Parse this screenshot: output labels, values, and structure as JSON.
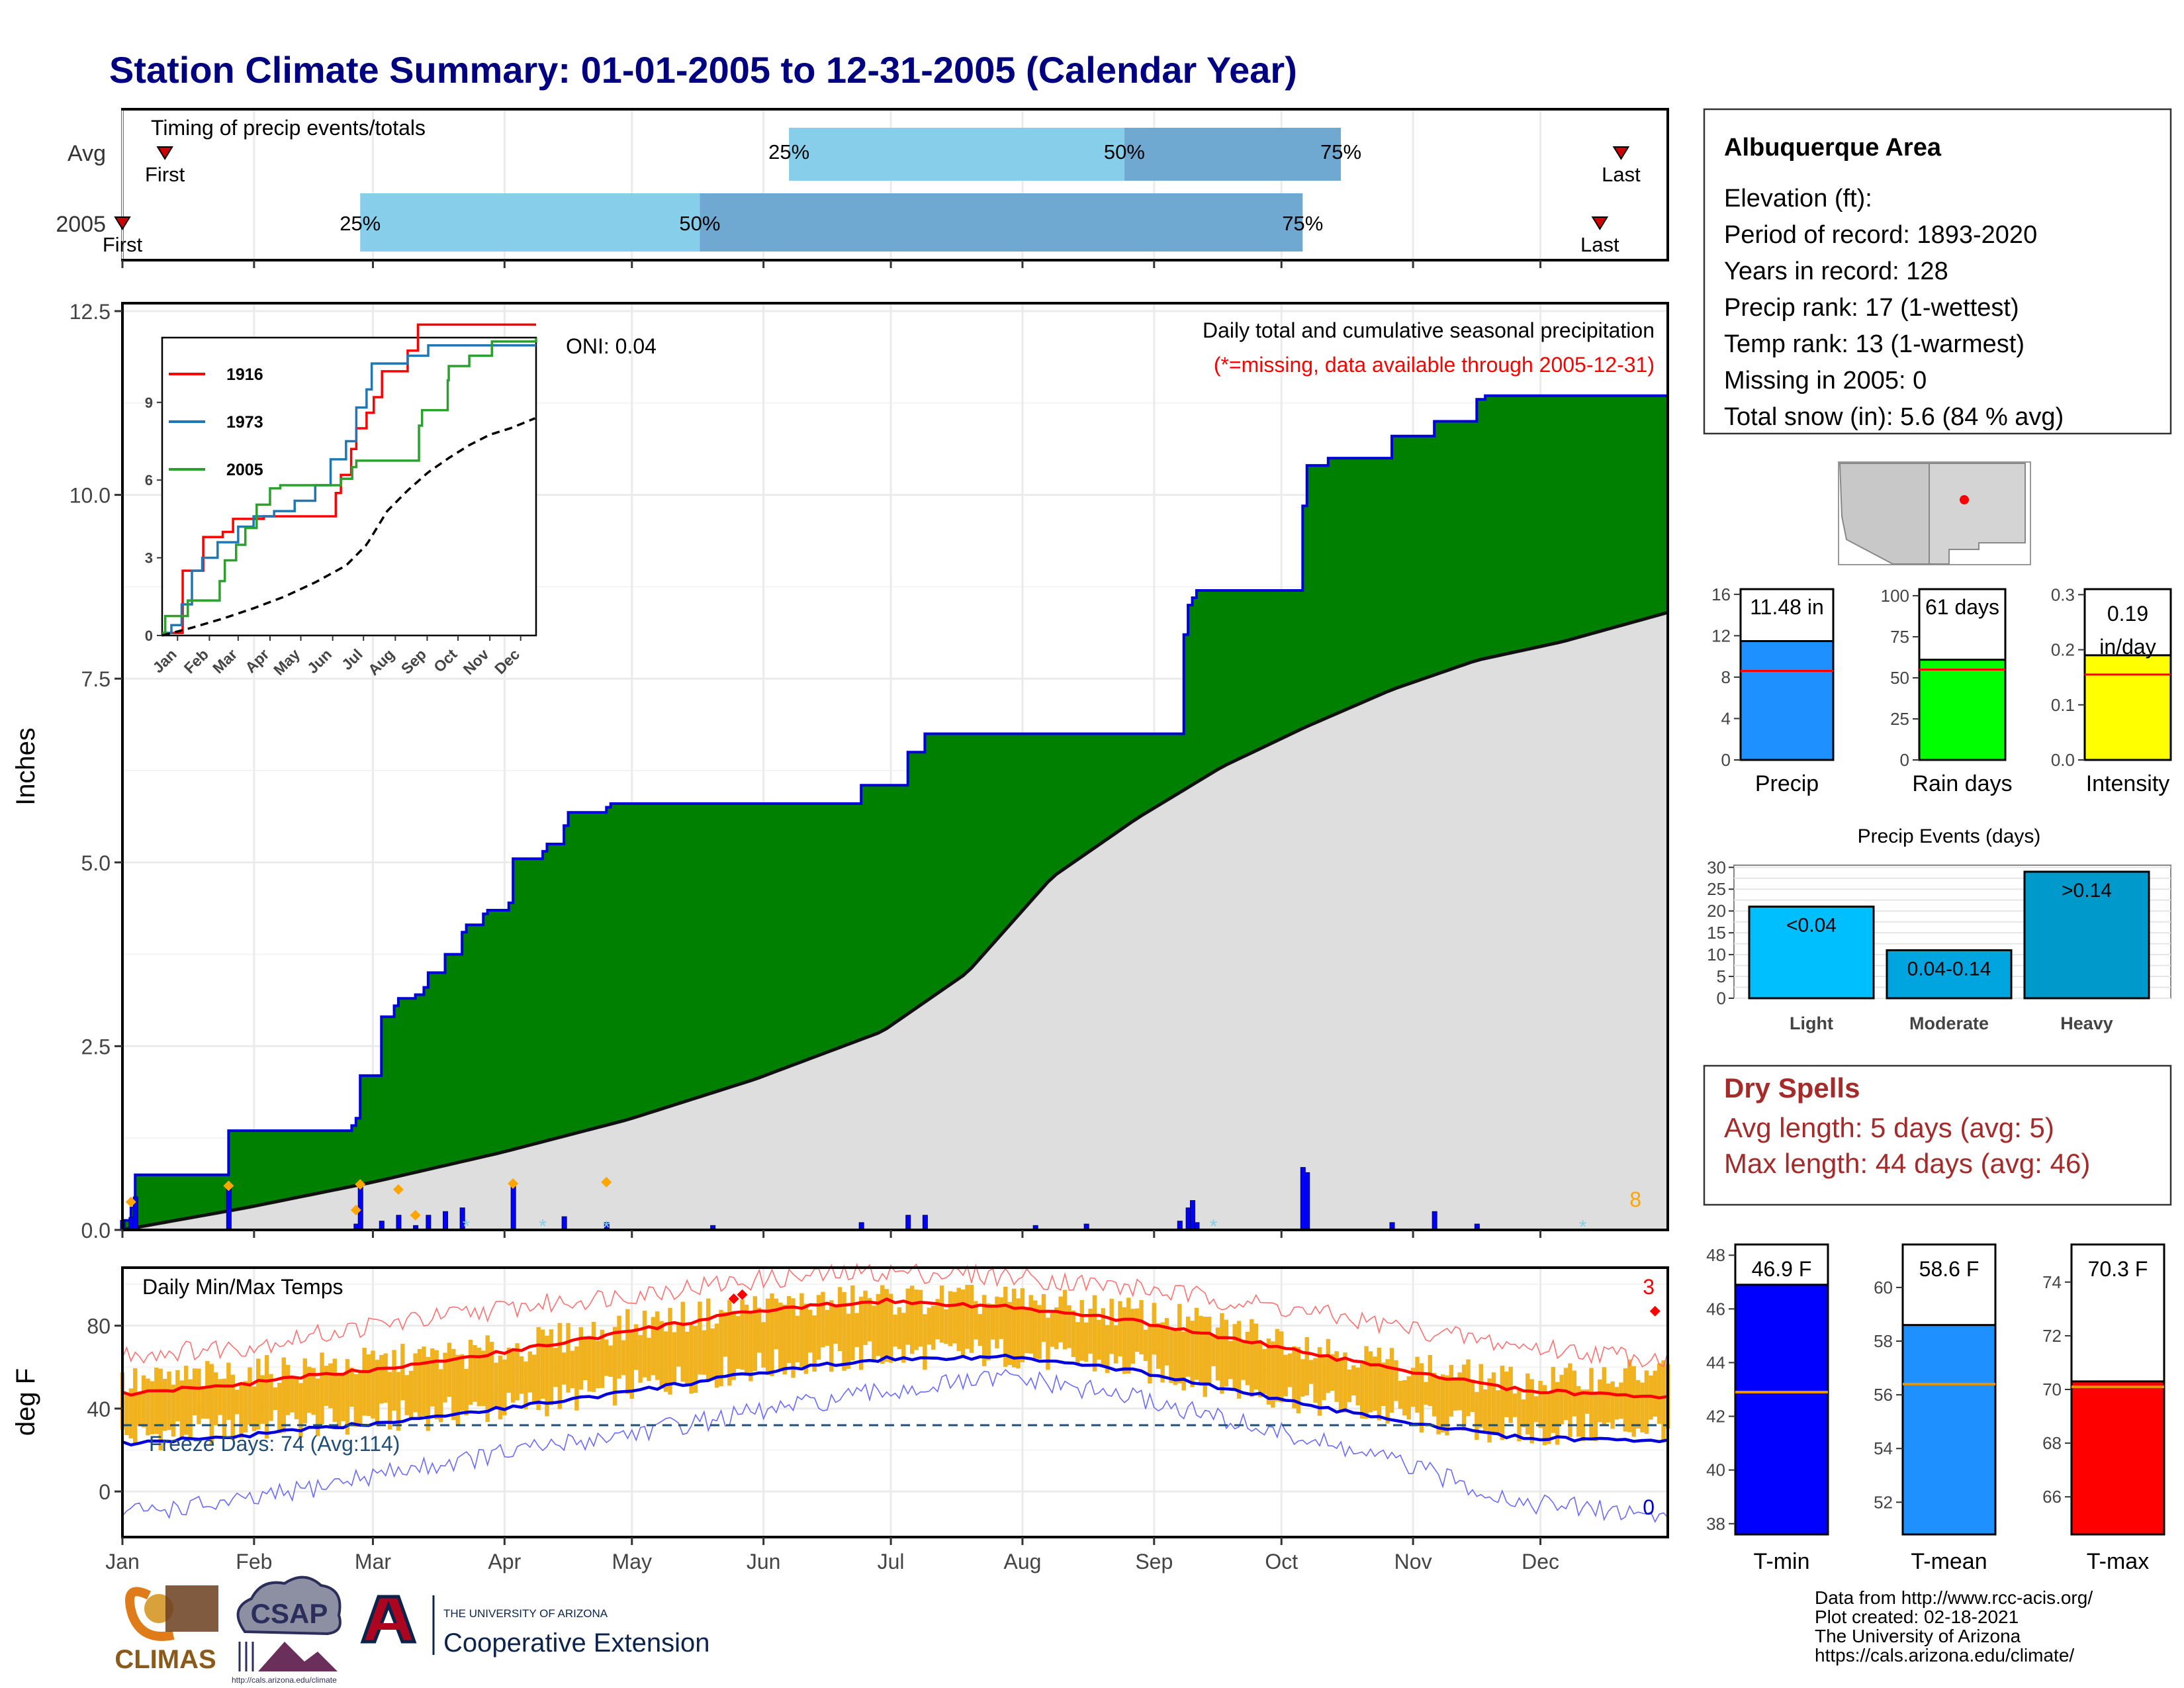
{
  "title": "Station Climate Summary: 01-01-2005 to 12-31-2005 (Calendar Year)",
  "months": [
    "Jan",
    "Feb",
    "Mar",
    "Apr",
    "May",
    "Jun",
    "Jul",
    "Aug",
    "Sep",
    "Oct",
    "Nov",
    "Dec"
  ],
  "colors": {
    "title": "#000080",
    "green": "#008000",
    "blue_line": "#0000dd",
    "gray_fill": "#dedede",
    "light_blue": "#87ceeb",
    "mid_blue": "#6fa8d0",
    "orange": "#f0b21e",
    "red": "#ff0000",
    "dry_red": "#a52a2a"
  },
  "timing": {
    "title": "Timing of precip events/totals",
    "rows": [
      {
        "label": "Avg",
        "first_day": 11,
        "p25": 158,
        "p50": 237,
        "p75": 288,
        "last_day": 354,
        "first_label": "First",
        "last_label": "Last"
      },
      {
        "label": "2005",
        "first_day": 1,
        "p25": 57,
        "p50": 137,
        "p75": 279,
        "last_day": 349,
        "first_label": "First",
        "last_label": "Last"
      }
    ],
    "pct_labels": [
      "25%",
      "50%",
      "75%"
    ]
  },
  "precip_panel": {
    "ylabel": "Inches",
    "oni": "ONI: 0.04",
    "title": "Daily total and cumulative seasonal precipitation",
    "missing_note": "(*=missing, data available through 2005-12-31)",
    "corner_count": "8",
    "yticks": [
      "0.0",
      "2.5",
      "5.0",
      "7.5",
      "10.0",
      "12.5"
    ]
  },
  "inset": {
    "years": [
      "1916",
      "1973",
      "2005"
    ],
    "colors": [
      "#ff0000",
      "#1f77b4",
      "#2ca02c"
    ],
    "yticks": [
      "0",
      "3",
      "6",
      "9"
    ]
  },
  "temp_panel": {
    "ylabel": "deg F",
    "title": "Daily Min/Max Temps",
    "freeze": "Freeze Days: 74 (Avg:114)",
    "corner_top": "3",
    "corner_bottom": "0",
    "yticks": [
      "0",
      "40",
      "80"
    ]
  },
  "station": {
    "name": "Albuquerque Area",
    "lines": [
      "Elevation (ft):",
      "Period of record: 1893-2020",
      "Years in record: 128",
      "Precip rank: 17 (1-wettest)",
      "Temp rank: 13 (1-warmest)",
      "Missing in 2005: 0",
      "Total snow (in): 5.6 (84 % avg)"
    ]
  },
  "mini_bars": [
    {
      "label": "Precip",
      "value_text": "11.48 in",
      "value": 11.48,
      "avg": 8.6,
      "ymax": 16.5,
      "ticks": [
        0,
        4,
        8,
        12,
        16
      ],
      "color": "#1e90ff"
    },
    {
      "label": "Rain days",
      "value_text": "61 days",
      "value": 61,
      "avg": 55,
      "ymax": 104,
      "ticks": [
        0,
        25,
        50,
        75,
        100
      ],
      "color": "#00ff00"
    },
    {
      "label": "Intensity",
      "value_text": "0.19 in/day",
      "value": 0.19,
      "avg": 0.155,
      "ymax": 0.31,
      "ticks": [
        0.0,
        0.1,
        0.2,
        0.3
      ],
      "color": "#ffff00"
    }
  ],
  "events": {
    "title": "Precip Events (days)",
    "categories": [
      "Light",
      "Moderate",
      "Heavy"
    ],
    "values": [
      21,
      11,
      29
    ],
    "labels": [
      "<0.04",
      "0.04-0.14",
      ">0.14"
    ],
    "colors": [
      "#00bfff",
      "#00a5e0",
      "#0099cc"
    ],
    "yticks": [
      0,
      5,
      10,
      15,
      20,
      25,
      30
    ]
  },
  "dry_spells": {
    "title": "Dry Spells",
    "avg_line": "Avg length: 5 days (avg: 5)",
    "max_line": "Max length: 44 days (avg: 46)"
  },
  "temp_bars": [
    {
      "label": "T-min",
      "value_text": "46.9 F",
      "value": 46.9,
      "avg": 42.9,
      "ymin": 37.6,
      "ymax": 48.4,
      "ticks": [
        38,
        40,
        42,
        44,
        46,
        48
      ],
      "color": "#0000ff"
    },
    {
      "label": "T-mean",
      "value_text": "58.6 F",
      "value": 58.6,
      "avg": 56.4,
      "ymin": 50.8,
      "ymax": 61.6,
      "ticks": [
        52,
        54,
        56,
        58,
        60
      ],
      "color": "#1e90ff"
    },
    {
      "label": "T-max",
      "value_text": "70.3 F",
      "value": 70.3,
      "avg": 70.1,
      "ymin": 64.6,
      "ymax": 75.4,
      "ticks": [
        66,
        68,
        70,
        72,
        74
      ],
      "color": "#ff0000"
    }
  ],
  "footer": {
    "lines": [
      "Data from http://www.rcc-acis.org/",
      "Plot created: 02-18-2021",
      "The University of Arizona",
      "https://cals.arizona.edu/climate/"
    ],
    "climas": "CLIMAS",
    "csap": "CSAP",
    "csap_url": "http://cals.arizona.edu/climate",
    "ua_top": "THE UNIVERSITY OF ARIZONA",
    "ua_bottom": "Cooperative Extension"
  },
  "chart_data": {
    "type": "area",
    "title": "Daily total and cumulative seasonal precipitation",
    "ylabel": "Inches",
    "ylim": [
      0,
      12.5
    ],
    "x_unit": "day of year 2005",
    "cumulative_2005": {
      "x": [
        1,
        3,
        4,
        25,
        26,
        55,
        56,
        57,
        61,
        62,
        65,
        66,
        67,
        70,
        72,
        73,
        77,
        81,
        82,
        86,
        87,
        92,
        93,
        100,
        101,
        105,
        106,
        115,
        116,
        175,
        186,
        190,
        251,
        252,
        253,
        254,
        279,
        280,
        285,
        300,
        310,
        320,
        322,
        365
      ],
      "y": [
        0.13,
        0.3,
        0.75,
        0.75,
        1.35,
        1.42,
        1.52,
        2.1,
        2.1,
        2.9,
        3.05,
        3.15,
        3.15,
        3.2,
        3.3,
        3.5,
        3.75,
        4.05,
        4.15,
        4.3,
        4.35,
        4.45,
        5.05,
        5.15,
        5.25,
        5.5,
        5.68,
        5.75,
        5.8,
        6.05,
        6.5,
        6.75,
        8.1,
        8.5,
        8.6,
        8.7,
        9.85,
        10.4,
        10.5,
        10.8,
        11.0,
        11.3,
        11.35,
        11.48
      ]
    },
    "average_cumulative": {
      "x": [
        1,
        30,
        60,
        90,
        120,
        150,
        180,
        200,
        220,
        240,
        260,
        280,
        300,
        320,
        340,
        365
      ],
      "y": [
        0,
        0.3,
        0.65,
        1.05,
        1.5,
        2.05,
        2.7,
        3.5,
        4.8,
        5.6,
        6.3,
        6.85,
        7.35,
        7.75,
        8.0,
        8.4
      ]
    },
    "daily_precip_bars": {
      "x": [
        1,
        3,
        4,
        26,
        56,
        57,
        62,
        66,
        70,
        73,
        77,
        81,
        93,
        105,
        115,
        140,
        175,
        186,
        190,
        216,
        228,
        250,
        252,
        253,
        254,
        279,
        280,
        300,
        310,
        320
      ],
      "y": [
        0.13,
        0.17,
        0.45,
        0.6,
        0.08,
        0.62,
        0.12,
        0.2,
        0.06,
        0.2,
        0.25,
        0.3,
        0.6,
        0.18,
        0.1,
        0.06,
        0.1,
        0.2,
        0.2,
        0.06,
        0.08,
        0.12,
        0.3,
        0.4,
        0.1,
        0.85,
        0.78,
        0.1,
        0.25,
        0.08
      ]
    },
    "inset": {
      "series": [
        {
          "name": "1916",
          "x": [
            1,
            20,
            21,
            40,
            41,
            60,
            70,
            100,
            130,
            160,
            170,
            175,
            185,
            190,
            200,
            207,
            215,
            240,
            250,
            365
          ],
          "y": [
            0.1,
            0.1,
            2.5,
            2.5,
            3.8,
            4.0,
            4.5,
            4.6,
            4.6,
            4.6,
            5.5,
            6.2,
            7.2,
            8.0,
            8.6,
            9.2,
            10.2,
            11.0,
            12.0,
            12.0
          ]
        },
        {
          "name": "1973",
          "x": [
            1,
            10,
            20,
            30,
            40,
            55,
            75,
            90,
            110,
            130,
            150,
            165,
            180,
            190,
            200,
            205,
            215,
            240,
            260,
            365
          ],
          "y": [
            0.1,
            0.4,
            1.2,
            2.5,
            3.0,
            3.6,
            4.2,
            4.6,
            4.8,
            5.2,
            5.8,
            6.8,
            7.5,
            8.8,
            9.5,
            10.5,
            10.5,
            10.8,
            11.2,
            11.2
          ]
        },
        {
          "name": "2005",
          "x": [
            1,
            4,
            25,
            26,
            57,
            62,
            73,
            82,
            93,
            106,
            116,
            175,
            186,
            190,
            251,
            254,
            279,
            280,
            300,
            322,
            365
          ],
          "y": [
            0.1,
            0.75,
            0.75,
            1.35,
            2.1,
            2.9,
            3.5,
            4.15,
            5.05,
            5.68,
            5.8,
            6.05,
            6.5,
            6.75,
            8.1,
            8.7,
            9.85,
            10.4,
            10.8,
            11.35,
            11.48
          ]
        },
        {
          "name": "average",
          "x": [
            1,
            30,
            60,
            90,
            120,
            150,
            180,
            200,
            220,
            240,
            260,
            280,
            300,
            320,
            340,
            365
          ],
          "y": [
            0,
            0.3,
            0.65,
            1.05,
            1.5,
            2.05,
            2.7,
            3.5,
            4.8,
            5.6,
            6.3,
            6.85,
            7.35,
            7.75,
            8.0,
            8.4
          ]
        }
      ],
      "ylim": [
        0,
        11.5
      ]
    },
    "temps": {
      "ylim": [
        -22,
        108
      ],
      "freeze_line": 32,
      "avg_max": {
        "x": [
          1,
          30,
          60,
          90,
          120,
          150,
          180,
          210,
          240,
          270,
          300,
          330,
          365
        ],
        "y": [
          47,
          52,
          59,
          67,
          77,
          87,
          92,
          89,
          82,
          71,
          59,
          49,
          45
        ]
      },
      "avg_min": {
        "x": [
          1,
          30,
          60,
          90,
          120,
          150,
          180,
          210,
          240,
          270,
          300,
          330,
          365
        ],
        "y": [
          23,
          27,
          33,
          40,
          48,
          57,
          64,
          65,
          58,
          46,
          34,
          26,
          24
        ]
      },
      "record_max": {
        "x": [
          1,
          30,
          60,
          90,
          120,
          150,
          180,
          210,
          240,
          270,
          300,
          330,
          365
        ],
        "y": [
          66,
          70,
          80,
          88,
          95,
          102,
          106,
          104,
          98,
          90,
          80,
          70,
          64
        ]
      },
      "record_min": {
        "x": [
          1,
          30,
          60,
          90,
          120,
          150,
          180,
          210,
          240,
          270,
          300,
          330,
          365
        ],
        "y": [
          -10,
          -5,
          8,
          18,
          28,
          38,
          48,
          55,
          45,
          30,
          15,
          -5,
          -12
        ]
      },
      "daily_range_2005": {
        "x": [
          1,
          30,
          60,
          90,
          120,
          150,
          180,
          210,
          240,
          270,
          300,
          330,
          365
        ],
        "tmin": [
          26,
          31,
          35,
          40,
          50,
          60,
          66,
          67,
          60,
          48,
          37,
          28,
          32
        ],
        "tmax": [
          52,
          57,
          62,
          68,
          80,
          89,
          93,
          92,
          86,
          76,
          62,
          52,
          58
        ]
      }
    }
  }
}
